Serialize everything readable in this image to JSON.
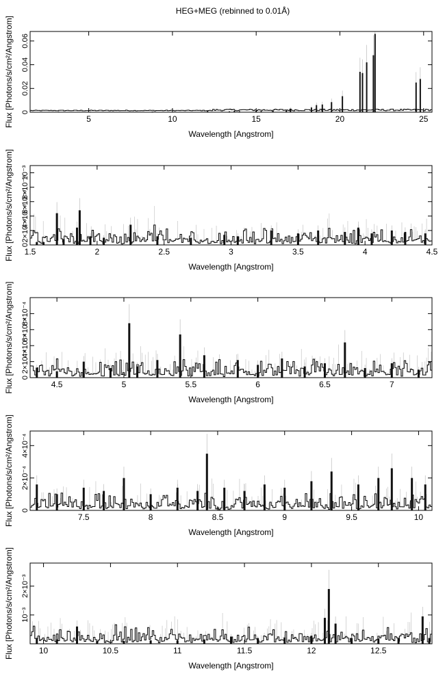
{
  "title": "HEG+MEG (rebinned to 0.01Å)",
  "chart_data": [
    {
      "type": "line",
      "xlabel": "Wavelength [Angstrom]",
      "ylabel": "Flux [Photons/s/cm²/Angstrom]",
      "xlim": [
        1.5,
        25.5
      ],
      "ylim": [
        0,
        0.068
      ],
      "xticks": [
        5,
        10,
        15,
        20,
        25
      ],
      "xtick_labels": [
        "5",
        "10",
        "15",
        "20",
        "25"
      ],
      "yticks": [
        0,
        0.02,
        0.04,
        0.06
      ],
      "ytick_labels": [
        "0",
        "0.02",
        "0.04",
        "0.06"
      ],
      "x": [
        3.2,
        5.1,
        8.8,
        12.1,
        13.4,
        13.7,
        14.0,
        15.0,
        15.3,
        16.0,
        16.8,
        17.05,
        18.3,
        18.6,
        18.95,
        19.5,
        20.15,
        21.2,
        21.35,
        21.6,
        22.0,
        22.1,
        24.55,
        24.8
      ],
      "y": [
        0.0004,
        0.0004,
        0.0005,
        0.001,
        0.0007,
        0.0012,
        0.0008,
        0.0012,
        0.001,
        0.0015,
        0.002,
        0.003,
        0.004,
        0.006,
        0.0065,
        0.0085,
        0.0135,
        0.034,
        0.033,
        0.042,
        0.048,
        0.066,
        0.025,
        0.028
      ]
    },
    {
      "type": "line",
      "xlabel": "Wavelength [Angstrom]",
      "ylabel": "Flux [Photons/s/cm²/Angstrom]",
      "xlim": [
        1.5,
        4.5
      ],
      "ylim": [
        0,
        0.0011
      ],
      "xticks": [
        1.5,
        2,
        2.5,
        3,
        3.5,
        4,
        4.5
      ],
      "xtick_labels": [
        "1.5",
        "2",
        "2.5",
        "3",
        "3.5",
        "4",
        "4.5"
      ],
      "yticks": [
        0,
        0.0002,
        0.0004,
        0.0006,
        0.0008,
        0.001
      ],
      "ytick_labels": [
        "0",
        "2×10⁻⁴",
        "4×10⁻⁴",
        "6×10⁻⁴",
        "8×10⁻⁴",
        "10⁻³"
      ],
      "x": [
        1.55,
        1.6,
        1.7,
        1.75,
        1.85,
        1.87,
        1.95,
        2.05,
        2.25,
        2.45,
        2.7,
        2.95,
        3.05,
        3.3,
        3.5,
        3.65,
        3.85,
        3.95,
        4.05,
        4.2,
        4.3,
        4.45
      ],
      "y": [
        4e-05,
        4e-05,
        0.00044,
        8e-05,
        0.00024,
        0.00048,
        0.00012,
        0.0001,
        0.00028,
        0.00012,
        0.0001,
        0.00014,
        0.00012,
        0.0002,
        0.00016,
        0.0002,
        0.00018,
        0.00024,
        0.00016,
        0.0002,
        0.00018,
        0.00016
      ]
    },
    {
      "type": "line",
      "xlabel": "Wavelength [Angstrom]",
      "ylabel": "Flux [Photons/s/cm²/Angstrom]",
      "xlim": [
        4.3,
        7.3
      ],
      "ylim": [
        0,
        0.001
      ],
      "xticks": [
        4.5,
        5,
        5.5,
        6,
        6.5,
        7
      ],
      "xtick_labels": [
        "4.5",
        "5",
        "5.5",
        "6",
        "6.5",
        "7"
      ],
      "yticks": [
        0,
        0.0002,
        0.0004,
        0.0006,
        0.0008
      ],
      "ytick_labels": [
        "0",
        "2×10⁻⁴",
        "4×10⁻⁴",
        "6×10⁻⁴",
        "8×10⁻⁴"
      ],
      "x": [
        4.35,
        4.5,
        4.7,
        4.9,
        5.04,
        5.1,
        5.25,
        5.42,
        5.6,
        5.85,
        6.0,
        6.18,
        6.35,
        6.5,
        6.65,
        6.8,
        7.0,
        7.2
      ],
      "y": [
        0.00012,
        8e-05,
        0.0002,
        0.00012,
        0.00068,
        0.00014,
        0.00022,
        0.00054,
        0.00028,
        0.00022,
        0.00016,
        0.00024,
        0.00014,
        0.00018,
        0.00044,
        0.00012,
        0.00018,
        0.0001
      ]
    },
    {
      "type": "line",
      "xlabel": "Wavelength [Angstrom]",
      "ylabel": "Flux [Photons/s/cm²/Angstrom]",
      "xlim": [
        7.1,
        10.1
      ],
      "ylim": [
        0,
        0.00049
      ],
      "xticks": [
        7.5,
        8,
        8.5,
        9,
        9.5,
        10
      ],
      "xtick_labels": [
        "7.5",
        "8",
        "8.5",
        "9",
        "9.5",
        "10"
      ],
      "yticks": [
        0,
        0.0002,
        0.0004
      ],
      "ytick_labels": [
        "0",
        "2×10⁻⁴",
        "4×10⁻⁴"
      ],
      "x": [
        7.15,
        7.3,
        7.5,
        7.65,
        7.8,
        8.0,
        8.2,
        8.35,
        8.42,
        8.55,
        8.7,
        8.85,
        9.0,
        9.2,
        9.35,
        9.55,
        9.7,
        9.8,
        9.95,
        10.05
      ],
      "y": [
        0.00016,
        0.0001,
        0.00014,
        0.00012,
        0.0002,
        0.0001,
        0.00014,
        0.00012,
        0.00035,
        0.00014,
        0.00012,
        0.00016,
        0.00014,
        0.00018,
        0.00024,
        0.00016,
        0.0002,
        0.00026,
        0.0002,
        0.00016
      ]
    },
    {
      "type": "line",
      "xlabel": "Wavelength [Angstrom]",
      "ylabel": "Flux [Photons/s/cm²/Angstrom]",
      "xlim": [
        9.9,
        12.9
      ],
      "ylim": [
        0,
        0.0028
      ],
      "xticks": [
        10,
        10.5,
        11,
        11.5,
        12,
        12.5
      ],
      "xtick_labels": [
        "10",
        "10.5",
        "11",
        "11.5",
        "12",
        "12.5"
      ],
      "yticks": [
        0.001,
        0.002
      ],
      "ytick_labels": [
        "10⁻³",
        "2×10⁻³"
      ],
      "x": [
        9.95,
        10.1,
        10.25,
        10.4,
        10.6,
        10.8,
        11.0,
        11.2,
        11.4,
        11.6,
        11.8,
        12.0,
        12.1,
        12.13,
        12.18,
        12.3,
        12.5,
        12.65,
        12.83,
        12.88
      ],
      "y": [
        0.0002,
        0.00015,
        0.0006,
        0.0001,
        0.0001,
        0.00012,
        0.00012,
        0.00015,
        0.00025,
        0.0002,
        0.00022,
        0.00028,
        0.0009,
        0.0019,
        0.0007,
        0.0002,
        0.00018,
        0.0002,
        0.00095,
        0.0002
      ]
    }
  ]
}
